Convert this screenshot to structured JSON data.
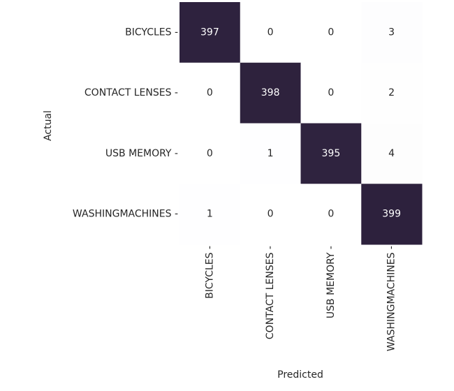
{
  "chart_data": {
    "type": "heatmap",
    "title": "",
    "xlabel": "Predicted",
    "ylabel": "Actual",
    "x_categories": [
      "BICYCLES",
      "CONTACT LENSES",
      "USB MEMORY",
      "WASHINGMACHINES"
    ],
    "y_categories": [
      "BICYCLES",
      "CONTACT LENSES",
      "USB MEMORY",
      "WASHINGMACHINES"
    ],
    "values": [
      [
        397,
        0,
        0,
        3
      ],
      [
        0,
        398,
        0,
        2
      ],
      [
        0,
        1,
        395,
        4
      ],
      [
        1,
        0,
        0,
        399
      ]
    ],
    "colorbar": false,
    "colors": {
      "high": "#2d213d",
      "low": "#ffffff",
      "text_on_dark": "#ffffff",
      "text_on_light": "#262626"
    }
  }
}
